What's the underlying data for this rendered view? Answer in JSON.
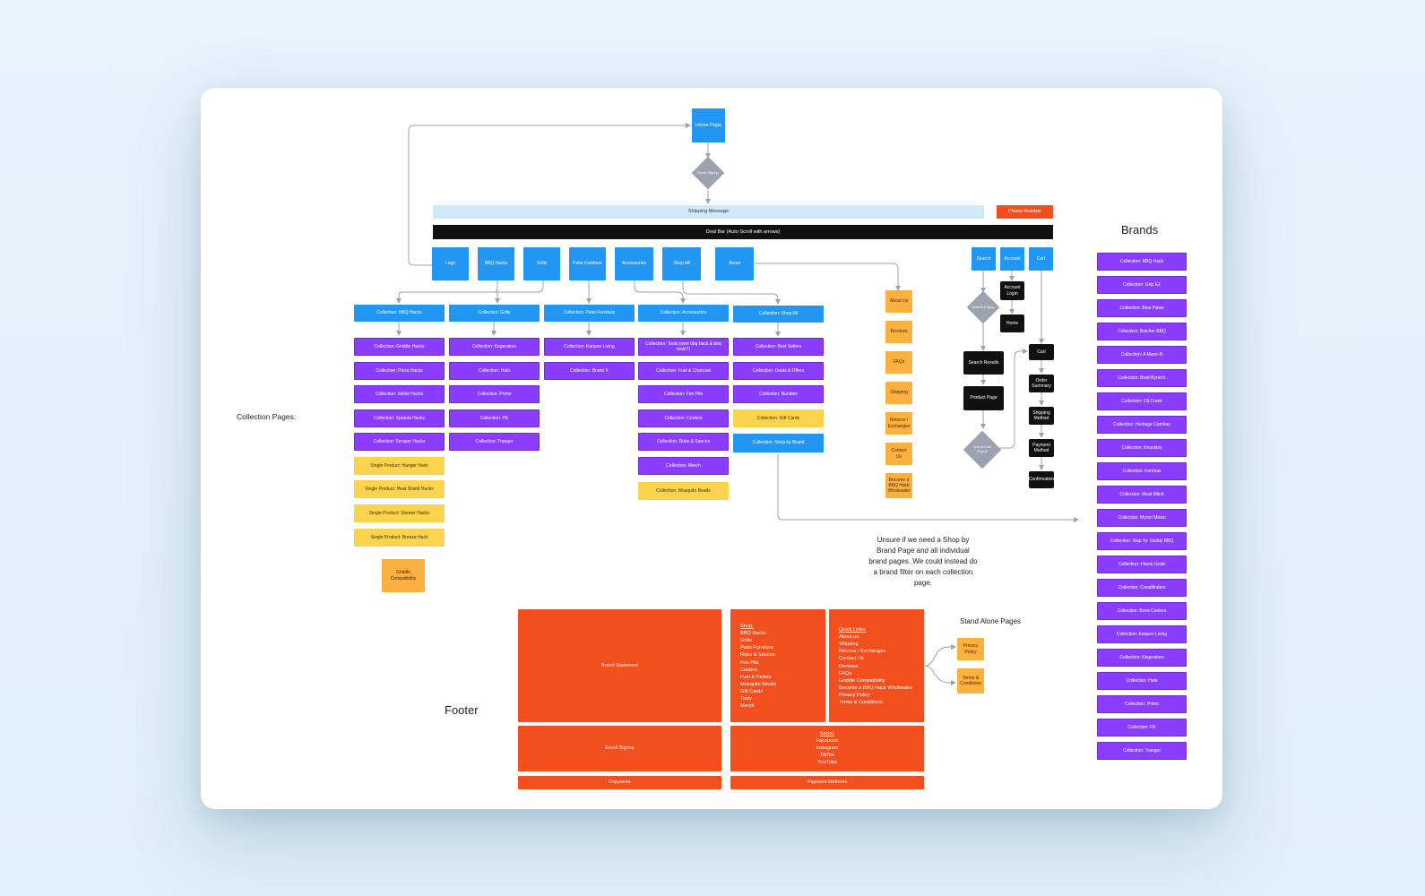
{
  "home": {
    "title": "Home Page",
    "email_signup": "Email Signup"
  },
  "top_bars": {
    "shipping": "Shipping Message",
    "phone": "Phone Number",
    "deal": "Deal Bar (Auto Scroll with arrows)"
  },
  "nav": [
    "Logo",
    "BBQ Hacks",
    "Grills",
    "Patio Furniture",
    "Accessories",
    "Shop All",
    "About"
  ],
  "utility": {
    "search": "Search",
    "account": "Account",
    "cart": "Cart"
  },
  "section_labels": {
    "collection_pages": "Collection Pages:",
    "brands": "Brands",
    "footer": "Footer",
    "stand_alone": "Stand Alone Pages"
  },
  "collections": {
    "bbq_hacks": {
      "header": "Collection: BBQ Hacks",
      "items": [
        "Collection: Griddle Hacks",
        "Collection: Pizza Hacks",
        "Collection: Skillet Hacks",
        "Collection: Spatula Hacks",
        "Collection: Scraper Hacks"
      ],
      "singles": [
        "Single Product: Hanger Hack",
        "Single Product: Heat Shield Hacks",
        "Single Product: Skewer Hacks",
        "Single Product: Breeze Hack"
      ],
      "extra": "Griddle Compatibility"
    },
    "grills": {
      "header": "Collection: Grills",
      "items": [
        "Collection: Kegerators",
        "Collection: Halo",
        "Collection: Primo",
        "Collection: PK",
        "Collection: Traeger"
      ]
    },
    "patio": {
      "header": "Collection: Patio Furniture",
      "items": [
        "Collection: Kanpen Living",
        "Collection: Brand X"
      ]
    },
    "accessories": {
      "header": "Collection: Accessories",
      "items": [
        "Collection: Tools (own bbq hack & bbq tools?)",
        "Collection: Fuel & Charcoal",
        "Collection: Fire Pits",
        "Collection: Coolers",
        "Collection: Rubs & Sauces",
        "Collection: Merch"
      ],
      "singles": [
        "Collection: Mosquito Beads"
      ]
    },
    "shop_all": {
      "header": "Collection: Shop All",
      "items": [
        "Collection: Best Sellers",
        "Collection: Deals & Offers",
        "Collection: Bundles"
      ],
      "gift": "Collection: Gift Cards",
      "brand": "Collection: Shop by Brand"
    }
  },
  "about_pages": [
    "About Us",
    "Reviews",
    "FAQs",
    "Shipping",
    "Returns / Exchanges",
    "Contact Us",
    "Become a BBQ Hack Wholesaler"
  ],
  "flow": {
    "search_popup": "Search Popup",
    "search_results": "Search Results",
    "product_page": "Product Page",
    "add_to_cart": "Add to Cart Popup",
    "account_login": "Account Login",
    "home": "Home",
    "cart": "Cart",
    "order_summary": "Order Summary",
    "shipping_method": "Shipping Method",
    "payment_method": "Payment Method",
    "confirmation": "Confirmation"
  },
  "note": "Unsure if we need a Shop by Brand Page and all individual brand pages. We could instead do a brand filter on each collection page.",
  "brands": [
    "Collection: BBQ Hack",
    "Collection: Grip EZ",
    "Collection: Bear Paws",
    "Collection: Butcher BBQ",
    "Collection: A Maze-N",
    "Collection: Brad Byron's",
    "Collection: Oli Creek",
    "Collection: Heritage Carnitas",
    "Collection: Knuckles",
    "Collection: Kenmax",
    "Collection: Meat Mitch",
    "Collection: Myron Mixon",
    "Collection: Slap Yo' Daddy BBQ",
    "Collection: Flame Gods",
    "Collection: Creatifinders",
    "Collection: Brew Coolers",
    "Collection: Kanpen Living",
    "Collection: Kegerators",
    "Collection: Halo",
    "Collection: Primo",
    "Collection: PK",
    "Collection: Traeger"
  ],
  "footer": {
    "brand_statement": "Brand Statement",
    "email_signup": "Email Signup",
    "copywrite": "Copywrite",
    "payment": "Payment Methods",
    "shop_head": "Shop:",
    "shop": [
      "BBQ Hacks",
      "Grills",
      "Patio Furniture",
      "Rubs & Sauces",
      "Fire Pits",
      "Coolers",
      "Fuel & Pellets",
      "Mosquito Beads",
      "Gift Cards",
      "Tooly",
      "Merch"
    ],
    "quick_head": "Quick Links:",
    "quick": [
      "About us",
      "Shipping",
      "Returns / Exchanges",
      "Contact Us",
      "Reviews",
      "FAQs",
      "Griddle Compatibility",
      "Become a BBQ Hack Wholesaler",
      "Privacy Policy",
      "Terms & Conditions"
    ],
    "social_head": "Social:",
    "social": [
      "Facebook",
      "Instagram",
      "TikTok",
      "YouTube"
    ],
    "stand_alone": [
      "Privacy Policy",
      "Terms & Conditions"
    ]
  },
  "colors": {
    "blue": "#2196f3",
    "purple": "#8b3dff",
    "yellow": "#fcd34d",
    "orange": "#fbb040",
    "red": "#f24e1e",
    "black": "#111111"
  }
}
